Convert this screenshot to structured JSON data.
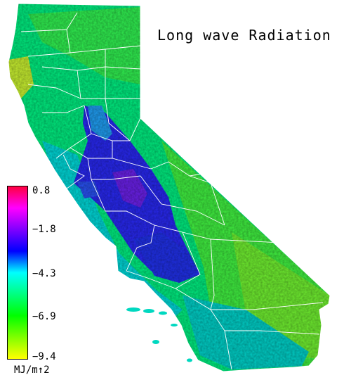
{
  "title": "Long wave Radiation",
  "legend": {
    "unit": "MJ/m↑2",
    "ticks": [
      "0.8",
      "−1.8",
      "−4.3",
      "−6.9",
      "−9.4"
    ],
    "colors": [
      "#ff0040",
      "#ff00ff",
      "#8000ff",
      "#0000ff",
      "#00ffff",
      "#00ff80",
      "#00ff00",
      "#80ff00",
      "#ffff00"
    ]
  },
  "map": {
    "region": "California",
    "palette": {
      "state_fill": "#00f07a",
      "high_lw": "#2b2bff",
      "mid_lw": "#00c8ff",
      "low_lw": "#40ff20",
      "very_low_lw": "#c8ff20",
      "county_lines": "#ffffff"
    }
  }
}
